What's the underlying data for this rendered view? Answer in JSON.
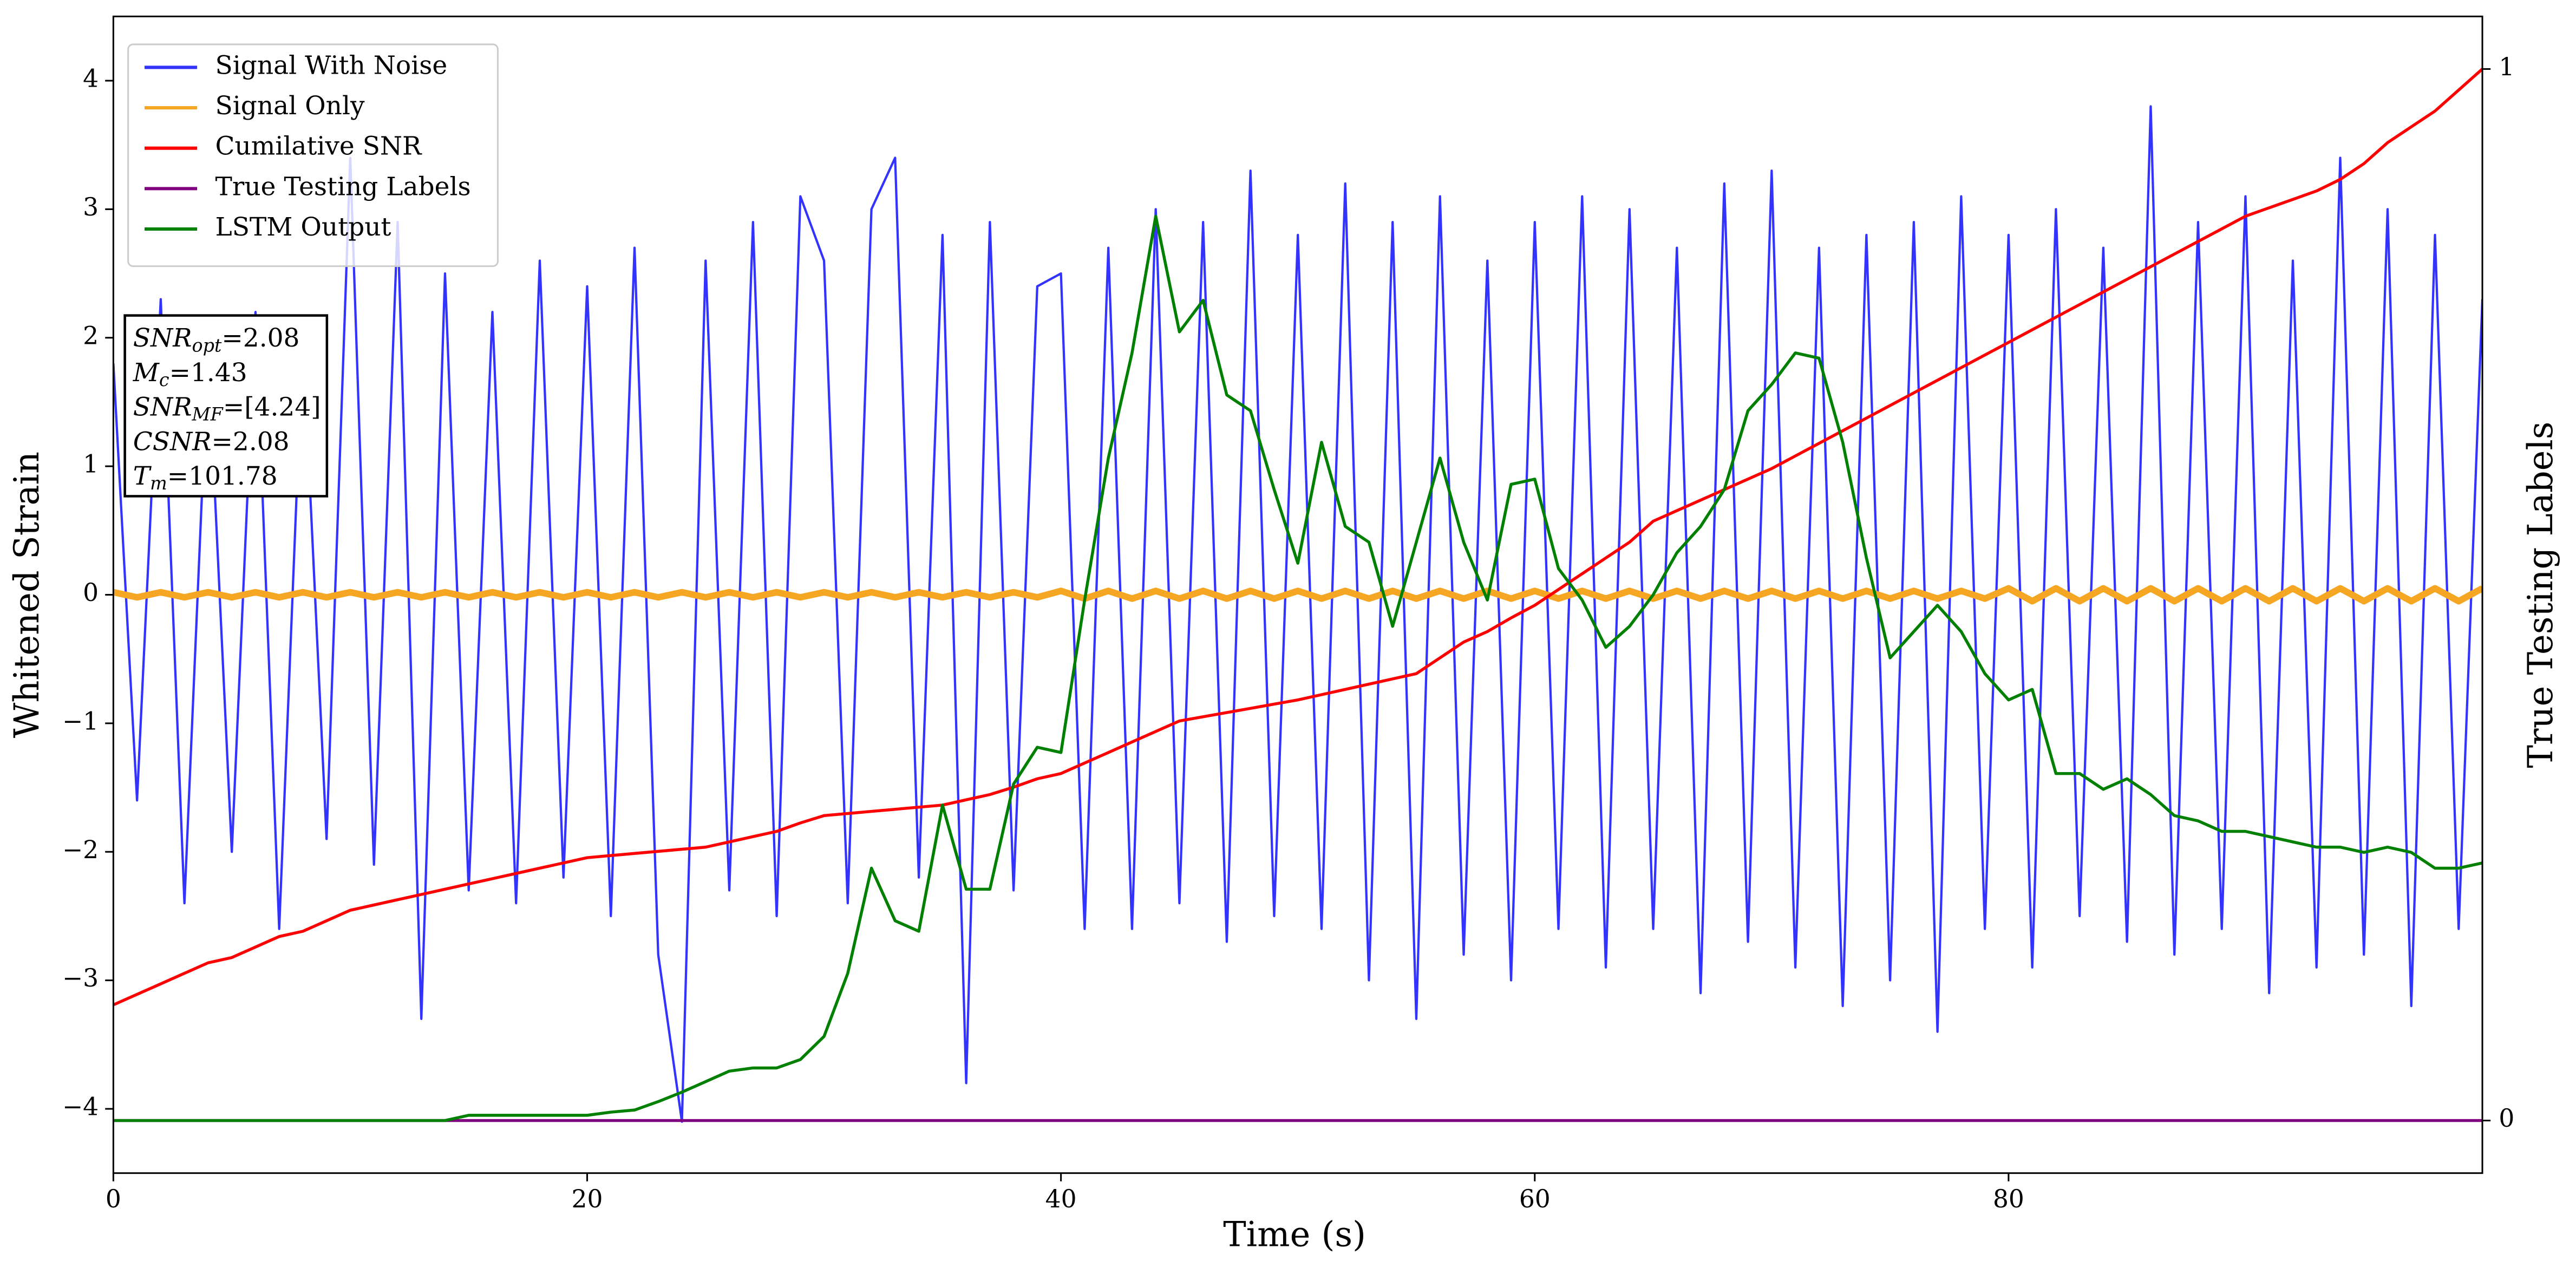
{
  "chart_data": {
    "type": "line",
    "xlabel": "Time (s)",
    "ylabel": "Whitened Strain",
    "y2label": "True Testing Labels",
    "xlim": [
      0,
      100
    ],
    "xticks": [
      0,
      20,
      40,
      60,
      80
    ],
    "ylim": [
      -4.5,
      4.5
    ],
    "yticks": [
      {
        "value": -4,
        "label": "−4"
      },
      {
        "value": -3,
        "label": "−3"
      },
      {
        "value": -2,
        "label": "−2"
      },
      {
        "value": -1,
        "label": "−1"
      },
      0,
      1,
      2,
      3,
      4
    ],
    "y2lim": [
      -0.05,
      1.05
    ],
    "y2ticks": [
      0,
      1
    ],
    "legend": "upper left",
    "x": [
      0,
      1,
      2,
      3,
      4,
      5,
      6,
      7,
      8,
      9,
      10,
      11,
      12,
      13,
      14,
      15,
      16,
      17,
      18,
      19,
      20,
      21,
      22,
      23,
      24,
      25,
      26,
      27,
      28,
      29,
      30,
      31,
      32,
      33,
      34,
      35,
      36,
      37,
      38,
      39,
      40,
      41,
      42,
      43,
      44,
      45,
      46,
      47,
      48,
      49,
      50,
      51,
      52,
      53,
      54,
      55,
      56,
      57,
      58,
      59,
      60,
      61,
      62,
      63,
      64,
      65,
      66,
      67,
      68,
      69,
      70,
      71,
      72,
      73,
      74,
      75,
      76,
      77,
      78,
      79,
      80,
      81,
      82,
      83,
      84,
      85,
      86,
      87,
      88,
      89,
      90,
      91,
      92,
      93,
      94,
      95,
      96,
      97,
      98,
      99,
      100
    ],
    "series": [
      {
        "name": "Signal With Noise",
        "color": "#3333ff",
        "axis": "y",
        "values": [
          1.8,
          -1.6,
          2.3,
          -2.4,
          1.9,
          -2.0,
          2.2,
          -2.6,
          2.0,
          -1.9,
          3.4,
          -2.1,
          2.9,
          -3.3,
          2.5,
          -2.3,
          2.2,
          -2.4,
          2.6,
          -2.2,
          2.4,
          -2.5,
          2.7,
          -2.8,
          -4.1,
          2.6,
          -2.3,
          2.9,
          -2.5,
          3.1,
          2.6,
          -2.4,
          3.0,
          3.4,
          -2.2,
          2.8,
          -3.8,
          2.9,
          -2.3,
          2.4,
          2.5,
          -2.6,
          2.7,
          -2.6,
          3.0,
          -2.4,
          2.9,
          -2.7,
          3.3,
          -2.5,
          2.8,
          -2.6,
          3.2,
          -3.0,
          2.9,
          -3.3,
          3.1,
          -2.8,
          2.6,
          -3.0,
          2.9,
          -2.6,
          3.1,
          -2.9,
          3.0,
          -2.6,
          2.7,
          -3.1,
          3.2,
          -2.7,
          3.3,
          -2.9,
          2.7,
          -3.2,
          2.8,
          -3.0,
          2.9,
          -3.4,
          3.1,
          -2.6,
          2.8,
          -2.9,
          3.0,
          -2.5,
          2.7,
          -2.7,
          3.8,
          -2.8,
          2.9,
          -2.6,
          3.1,
          -3.1,
          2.6,
          -2.9,
          3.4,
          -2.8,
          3.0,
          -3.2,
          2.8,
          -2.6,
          2.3
        ]
      },
      {
        "name": "Signal Only",
        "color": "#f5a623",
        "axis": "y",
        "values": [
          0.02,
          -0.02,
          0.02,
          -0.02,
          0.02,
          -0.02,
          0.02,
          -0.02,
          0.02,
          -0.02,
          0.02,
          -0.02,
          0.02,
          -0.02,
          0.02,
          -0.02,
          0.02,
          -0.02,
          0.02,
          -0.02,
          0.02,
          -0.02,
          0.02,
          -0.02,
          0.02,
          -0.02,
          0.02,
          -0.02,
          0.02,
          -0.02,
          0.02,
          -0.02,
          0.02,
          -0.02,
          0.02,
          -0.02,
          0.02,
          -0.02,
          0.02,
          -0.02,
          0.03,
          -0.03,
          0.03,
          -0.03,
          0.03,
          -0.03,
          0.03,
          -0.03,
          0.03,
          -0.03,
          0.03,
          -0.03,
          0.03,
          -0.03,
          0.03,
          -0.03,
          0.03,
          -0.03,
          0.03,
          -0.03,
          0.03,
          -0.03,
          0.03,
          -0.03,
          0.03,
          -0.03,
          0.03,
          -0.03,
          0.03,
          -0.03,
          0.03,
          -0.03,
          0.03,
          -0.03,
          0.03,
          -0.03,
          0.03,
          -0.03,
          0.03,
          -0.03,
          0.05,
          -0.05,
          0.05,
          -0.05,
          0.05,
          -0.05,
          0.05,
          -0.05,
          0.05,
          -0.05,
          0.05,
          -0.05,
          0.05,
          -0.05,
          0.05,
          -0.05,
          0.05,
          -0.05,
          0.05,
          -0.05,
          0.05
        ]
      },
      {
        "name": "Cumilative SNR",
        "color": "#ff0000",
        "axis": "y2",
        "values": [
          0.11,
          0.12,
          0.13,
          0.14,
          0.15,
          0.155,
          0.165,
          0.175,
          0.18,
          0.19,
          0.2,
          0.205,
          0.21,
          0.215,
          0.22,
          0.225,
          0.23,
          0.235,
          0.24,
          0.245,
          0.25,
          0.252,
          0.254,
          0.256,
          0.258,
          0.26,
          0.265,
          0.27,
          0.275,
          0.283,
          0.29,
          0.292,
          0.294,
          0.296,
          0.298,
          0.3,
          0.305,
          0.31,
          0.317,
          0.325,
          0.33,
          0.34,
          0.35,
          0.36,
          0.37,
          0.38,
          0.384,
          0.388,
          0.392,
          0.396,
          0.4,
          0.405,
          0.41,
          0.415,
          0.42,
          0.425,
          0.44,
          0.455,
          0.465,
          0.478,
          0.49,
          0.505,
          0.52,
          0.535,
          0.55,
          0.57,
          0.58,
          0.59,
          0.6,
          0.61,
          0.62,
          0.632,
          0.644,
          0.656,
          0.668,
          0.68,
          0.692,
          0.704,
          0.716,
          0.728,
          0.74,
          0.752,
          0.764,
          0.776,
          0.788,
          0.8,
          0.812,
          0.824,
          0.836,
          0.848,
          0.86,
          0.868,
          0.876,
          0.884,
          0.895,
          0.91,
          0.93,
          0.945,
          0.96,
          0.98,
          1.0
        ]
      },
      {
        "name": "True Testing Labels",
        "color": "#800080",
        "axis": "y2",
        "values": [
          0,
          0,
          0,
          0,
          0,
          0,
          0,
          0,
          0,
          0,
          0,
          0,
          0,
          0,
          0,
          0,
          0,
          0,
          0,
          0,
          0,
          0,
          0,
          0,
          0,
          0,
          0,
          0,
          0,
          0,
          0,
          0,
          0,
          0,
          0,
          0,
          0,
          0,
          0,
          0,
          0,
          0,
          0,
          0,
          0,
          0,
          0,
          0,
          0,
          0,
          0,
          0,
          0,
          0,
          0,
          0,
          0,
          0,
          0,
          0,
          0,
          0,
          0,
          0,
          0,
          0,
          0,
          0,
          0,
          0,
          0,
          0,
          0,
          0,
          0,
          0,
          0,
          0,
          0,
          0,
          0,
          0,
          0,
          0,
          0,
          0,
          0,
          0,
          0,
          0,
          0,
          0,
          0,
          0,
          0,
          0,
          0,
          0,
          0,
          0,
          0
        ]
      },
      {
        "name": "LSTM Output",
        "color": "#008000",
        "axis": "y2",
        "values": [
          0,
          0,
          0,
          0,
          0,
          0,
          0,
          0,
          0,
          0,
          0,
          0,
          0,
          0,
          0,
          0.005,
          0.005,
          0.005,
          0.005,
          0.005,
          0.005,
          0.008,
          0.01,
          0.018,
          0.027,
          0.037,
          0.047,
          0.05,
          0.05,
          0.058,
          0.08,
          0.14,
          0.24,
          0.19,
          0.18,
          0.3,
          0.22,
          0.22,
          0.32,
          0.355,
          0.35,
          0.495,
          0.63,
          0.73,
          0.86,
          0.75,
          0.78,
          0.69,
          0.675,
          0.6,
          0.53,
          0.645,
          0.565,
          0.55,
          0.47,
          0.55,
          0.63,
          0.55,
          0.495,
          0.605,
          0.61,
          0.525,
          0.495,
          0.45,
          0.47,
          0.5,
          0.54,
          0.565,
          0.6,
          0.675,
          0.7,
          0.73,
          0.725,
          0.645,
          0.535,
          0.44,
          0.465,
          0.49,
          0.465,
          0.425,
          0.4,
          0.41,
          0.33,
          0.33,
          0.315,
          0.325,
          0.31,
          0.29,
          0.285,
          0.275,
          0.275,
          0.27,
          0.265,
          0.26,
          0.26,
          0.255,
          0.26,
          0.255,
          0.24,
          0.24,
          0.245
        ]
      }
    ],
    "annotation": [
      {
        "symbol": "SNR",
        "subscript": "opt",
        "value": "=2.08"
      },
      {
        "symbol": "M",
        "subscript": "c",
        "value": "=1.43"
      },
      {
        "symbol": "SNR",
        "subscript": "MF",
        "value": "=[4.24]"
      },
      {
        "symbol": "CSNR",
        "value": "=2.08"
      },
      {
        "symbol": "T",
        "subscript": "m",
        "value": "=101.78"
      }
    ]
  }
}
